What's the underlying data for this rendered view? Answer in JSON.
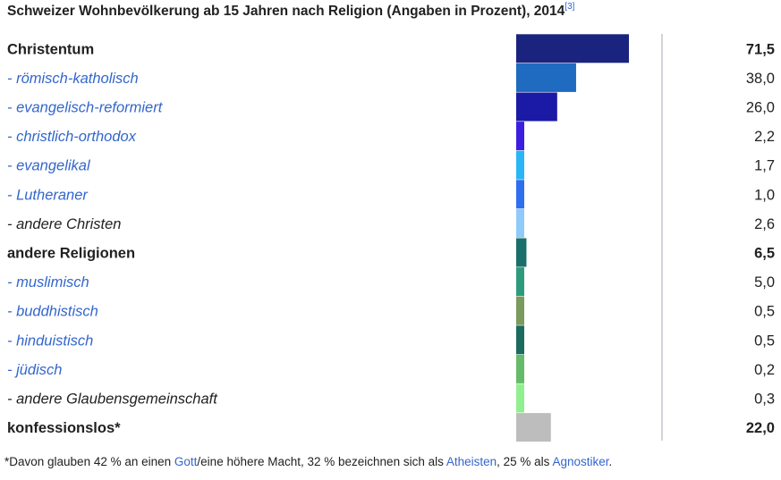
{
  "title": {
    "text": "Schweizer Wohnbevölkerung ab 15 Jahren nach Religion (Angaben in Prozent), 2014",
    "ref": "[3]"
  },
  "chart_data": {
    "type": "bar",
    "orientation": "horizontal",
    "title": "Schweizer Wohnbevölkerung ab 15 Jahren nach Religion (Angaben in Prozent), 2014",
    "xlim": [
      0,
      100
    ],
    "grid": false,
    "rows": [
      {
        "label": "Christentum",
        "value": 71.5,
        "display": "71,5",
        "style": "bold",
        "color": "#1a237e"
      },
      {
        "label": "- römisch-katholisch",
        "value": 38.0,
        "display": "38,0",
        "style": "link",
        "color": "#1f6bbf"
      },
      {
        "label": "- evangelisch-reformiert",
        "value": 26.0,
        "display": "26,0",
        "style": "link",
        "color": "#1a1aa6"
      },
      {
        "label": "- christlich-orthodox",
        "value": 2.2,
        "display": "2,2",
        "style": "link",
        "color": "#3b1ee0"
      },
      {
        "label": "- evangelikal",
        "value": 1.7,
        "display": "1,7",
        "style": "link",
        "color": "#29b6f6"
      },
      {
        "label": "- Lutheraner",
        "value": 1.0,
        "display": "1,0",
        "style": "link",
        "color": "#2e6ff0"
      },
      {
        "label": "- andere Christen",
        "value": 2.6,
        "display": "2,6",
        "style": "plain",
        "color": "#90caf9"
      },
      {
        "label": "andere Religionen",
        "value": 6.5,
        "display": "6,5",
        "style": "bold",
        "color": "#1b6f6a"
      },
      {
        "label": "- muslimisch",
        "value": 5.0,
        "display": "5,0",
        "style": "link",
        "color": "#2e9c7c"
      },
      {
        "label": "- buddhistisch",
        "value": 0.5,
        "display": "0,5",
        "style": "link",
        "color": "#7a9a5e"
      },
      {
        "label": "- hinduistisch",
        "value": 0.5,
        "display": "0,5",
        "style": "link",
        "color": "#1b6b5e"
      },
      {
        "label": "- jüdisch",
        "value": 0.2,
        "display": "0,2",
        "style": "link",
        "color": "#66bb6a"
      },
      {
        "label": "- andere Glaubensgemeinschaft",
        "value": 0.3,
        "display": "0,3",
        "style": "plain",
        "color": "#90f090"
      },
      {
        "label": "konfessionslos*",
        "value": 22.0,
        "display": "22,0",
        "style": "bold",
        "color": "#bdbdbd"
      }
    ]
  },
  "footnote": {
    "part1": "*Davon glauben 42 % an einen ",
    "link1": "Gott",
    "part2": "/eine höhere Macht, 32 % bezeichnen sich als ",
    "link2": "Atheisten",
    "part3": ", 25 % als ",
    "link3": "Agnostiker",
    "part4": "."
  }
}
